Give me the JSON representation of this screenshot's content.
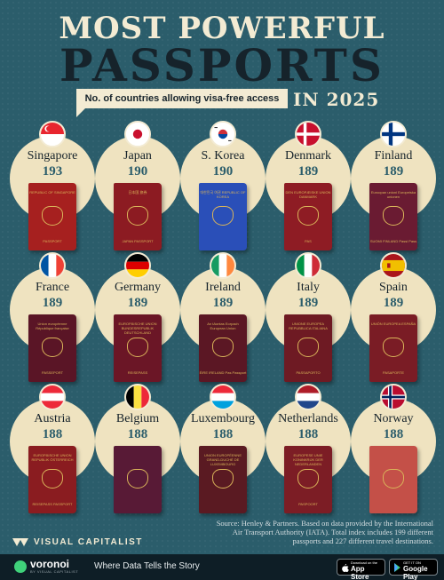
{
  "header": {
    "title_line1": "MOST POWERFUL",
    "title_line2": "PASSPORTS",
    "subtitle": "No. of countries allowing visa-free access",
    "year": "IN 2025"
  },
  "countries": [
    {
      "name": "Singapore",
      "score": "193",
      "cover": "#a6201f",
      "text_top": "REPUBLIC OF SINGAPORE",
      "text_bottom": "PASSPORT",
      "flag": "singapore-flag-icon"
    },
    {
      "name": "Japan",
      "score": "190",
      "cover": "#8c1b22",
      "text_top": "日本国 旅券",
      "text_bottom": "JAPAN PASSPORT",
      "flag": "japan-flag-icon"
    },
    {
      "name": "S. Korea",
      "score": "190",
      "cover": "#2a4fb8",
      "text_top": "대한민국 여권 REPUBLIC OF KOREA",
      "text_bottom": "",
      "flag": "south-korea-flag-icon"
    },
    {
      "name": "Denmark",
      "score": "189",
      "cover": "#8e1c24",
      "text_top": "DEN EUROPÆISKE UNION DANMARK",
      "text_bottom": "PAS",
      "flag": "denmark-flag-icon"
    },
    {
      "name": "Finland",
      "score": "189",
      "cover": "#6a1b32",
      "text_top": "Euroopan unioni Europeiska unionen",
      "text_bottom": "SUOMI FINLAND Passi Pass",
      "flag": "finland-flag-icon"
    },
    {
      "name": "France",
      "score": "189",
      "cover": "#5a1526",
      "text_top": "Union européenne République française",
      "text_bottom": "PASSEPORT",
      "flag": "france-flag-icon"
    },
    {
      "name": "Germany",
      "score": "189",
      "cover": "#6b1626",
      "text_top": "EUROPÄISCHE UNION BUNDESREPUBLIK DEUTSCHLAND",
      "text_bottom": "REISEPASS",
      "flag": "germany-flag-icon"
    },
    {
      "name": "Ireland",
      "score": "189",
      "cover": "#5b1724",
      "text_top": "An tAontas Eorpach European Union",
      "text_bottom": "ÉIRE IRELAND Pas Passport",
      "flag": "ireland-flag-icon"
    },
    {
      "name": "Italy",
      "score": "189",
      "cover": "#6e1a23",
      "text_top": "UNIONE EUROPEA REPUBBLICA ITALIANA",
      "text_bottom": "PASSAPORTO",
      "flag": "italy-flag-icon"
    },
    {
      "name": "Spain",
      "score": "189",
      "cover": "#7a1c25",
      "text_top": "UNIÓN EUROPEA ESPAÑA",
      "text_bottom": "PASAPORTE",
      "flag": "spain-flag-icon"
    },
    {
      "name": "Austria",
      "score": "188",
      "cover": "#8a1c20",
      "text_top": "EUROPÄISCHE UNION REPUBLIK ÖSTERREICH",
      "text_bottom": "REISEPASS PASSPORT",
      "flag": "austria-flag-icon"
    },
    {
      "name": "Belgium",
      "score": "188",
      "cover": "#581a36",
      "text_top": "",
      "text_bottom": "",
      "flag": "belgium-flag-icon"
    },
    {
      "name": "Luxembourg",
      "score": "188",
      "cover": "#5a1a22",
      "text_top": "UNION EUROPÉENNE GRAND-DUCHÉ DE LUXEMBOURG",
      "text_bottom": "",
      "flag": "luxembourg-flag-icon"
    },
    {
      "name": "Netherlands",
      "score": "188",
      "cover": "#7c1d25",
      "text_top": "EUROPESE UNIE KONINKRIJK DER NEDERLANDEN",
      "text_bottom": "PASPOORT",
      "flag": "netherlands-flag-icon"
    },
    {
      "name": "Norway",
      "score": "188",
      "cover": "#c45048",
      "text_top": "",
      "text_bottom": "",
      "flag": "norway-flag-icon"
    }
  ],
  "source": "Source: Henley & Partners. Based on data provided by the International Air Transport Authority (IATA). Total index includes 199 different passports and 227 different travel destinations.",
  "brand": {
    "name": "VISUAL CAPITALIST"
  },
  "footer": {
    "logo_name": "voronoi",
    "logo_sub": "BY VISUAL CAPITALIST",
    "tagline": "Where Data Tells the Story",
    "appstore_small": "Download on the",
    "appstore_big": "App Store",
    "googleplay_small": "GET IT ON",
    "googleplay_big": "Google Play"
  }
}
